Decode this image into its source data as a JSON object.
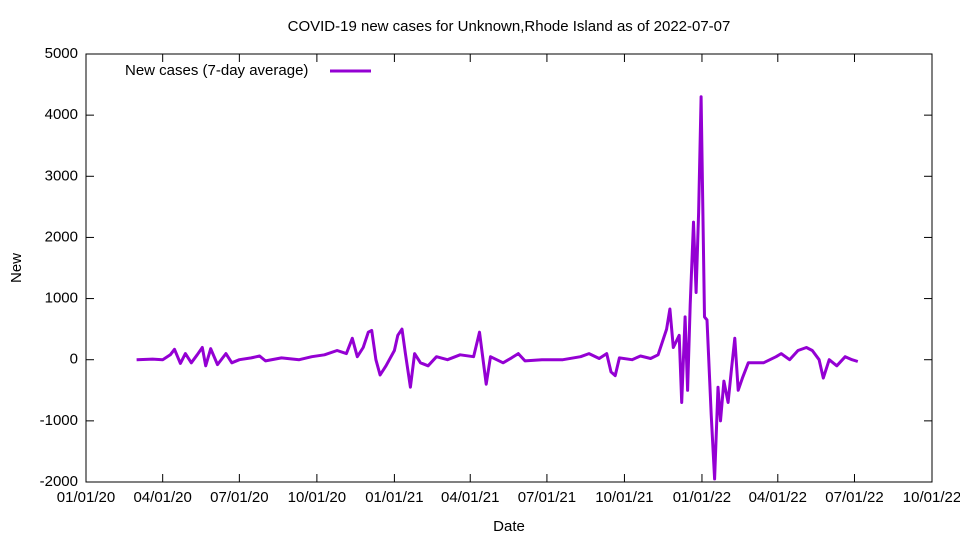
{
  "chart_data": {
    "type": "line",
    "title": "COVID-19 new cases for Unknown,Rhode Island as of 2022-07-07",
    "x_label": "Date",
    "y_label": "New",
    "legend_position": "top-left",
    "xlim": [
      "2020-01-01",
      "2022-10-01"
    ],
    "xticks": [
      {
        "value": "2020-01-01",
        "label": "01/01/20"
      },
      {
        "value": "2020-04-01",
        "label": "04/01/20"
      },
      {
        "value": "2020-07-01",
        "label": "07/01/20"
      },
      {
        "value": "2020-10-01",
        "label": "10/01/20"
      },
      {
        "value": "2021-01-01",
        "label": "01/01/21"
      },
      {
        "value": "2021-04-01",
        "label": "04/01/21"
      },
      {
        "value": "2021-07-01",
        "label": "07/01/21"
      },
      {
        "value": "2021-10-01",
        "label": "10/01/21"
      },
      {
        "value": "2022-01-01",
        "label": "01/01/22"
      },
      {
        "value": "2022-04-01",
        "label": "04/01/22"
      },
      {
        "value": "2022-07-01",
        "label": "07/01/22"
      },
      {
        "value": "2022-10-01",
        "label": "10/01/22"
      }
    ],
    "ylim": [
      -2000,
      5000
    ],
    "yticks": [
      -2000,
      -1000,
      0,
      1000,
      2000,
      3000,
      4000,
      5000
    ],
    "x": [
      "2020-03-01",
      "2020-03-20",
      "2020-04-01",
      "2020-04-10",
      "2020-04-15",
      "2020-04-22",
      "2020-04-28",
      "2020-05-05",
      "2020-05-12",
      "2020-05-18",
      "2020-05-22",
      "2020-05-28",
      "2020-06-05",
      "2020-06-15",
      "2020-06-22",
      "2020-07-01",
      "2020-07-15",
      "2020-07-25",
      "2020-08-01",
      "2020-08-20",
      "2020-09-10",
      "2020-09-25",
      "2020-10-10",
      "2020-10-25",
      "2020-11-05",
      "2020-11-12",
      "2020-11-18",
      "2020-11-25",
      "2020-12-01",
      "2020-12-05",
      "2020-12-10",
      "2020-12-15",
      "2020-12-22",
      "2021-01-01",
      "2021-01-05",
      "2021-01-10",
      "2021-01-14",
      "2021-01-20",
      "2021-01-25",
      "2021-02-01",
      "2021-02-10",
      "2021-02-20",
      "2021-03-05",
      "2021-03-20",
      "2021-04-05",
      "2021-04-12",
      "2021-04-16",
      "2021-04-20",
      "2021-04-25",
      "2021-05-10",
      "2021-05-20",
      "2021-05-28",
      "2021-06-05",
      "2021-06-25",
      "2021-07-20",
      "2021-08-10",
      "2021-08-20",
      "2021-09-01",
      "2021-09-10",
      "2021-09-15",
      "2021-09-20",
      "2021-09-25",
      "2021-10-10",
      "2021-10-20",
      "2021-11-01",
      "2021-11-10",
      "2021-11-20",
      "2021-11-24",
      "2021-11-28",
      "2021-12-05",
      "2021-12-08",
      "2021-12-12",
      "2021-12-15",
      "2021-12-18",
      "2021-12-22",
      "2021-12-25",
      "2021-12-28",
      "2021-12-31",
      "2022-01-04",
      "2022-01-07",
      "2022-01-12",
      "2022-01-16",
      "2022-01-20",
      "2022-01-23",
      "2022-01-27",
      "2022-02-01",
      "2022-02-05",
      "2022-02-09",
      "2022-02-13",
      "2022-02-18",
      "2022-02-25",
      "2022-03-15",
      "2022-03-30",
      "2022-04-05",
      "2022-04-15",
      "2022-04-25",
      "2022-05-05",
      "2022-05-12",
      "2022-05-20",
      "2022-05-25",
      "2022-06-01",
      "2022-06-10",
      "2022-06-20",
      "2022-06-28",
      "2022-07-05"
    ],
    "series": [
      {
        "name": "New cases (7-day average)",
        "color": "#9400d3",
        "values": [
          0,
          10,
          0,
          80,
          170,
          -60,
          100,
          -50,
          80,
          200,
          -100,
          180,
          -80,
          100,
          -50,
          0,
          30,
          60,
          -20,
          30,
          0,
          50,
          80,
          150,
          100,
          350,
          50,
          200,
          450,
          480,
          0,
          -250,
          -100,
          150,
          400,
          500,
          100,
          -450,
          100,
          -50,
          -100,
          50,
          0,
          80,
          50,
          450,
          20,
          -400,
          50,
          -50,
          30,
          100,
          -20,
          0,
          0,
          50,
          100,
          20,
          100,
          -200,
          -260,
          30,
          0,
          60,
          20,
          80,
          500,
          830,
          200,
          400,
          -700,
          700,
          -500,
          900,
          2250,
          1100,
          2400,
          4300,
          700,
          650,
          -900,
          -1950,
          -450,
          -1000,
          -350,
          -700,
          -150,
          350,
          -500,
          -300,
          -50,
          -50,
          50,
          100,
          0,
          150,
          200,
          150,
          0,
          -300,
          0,
          -100,
          50,
          0,
          -30
        ]
      }
    ]
  }
}
